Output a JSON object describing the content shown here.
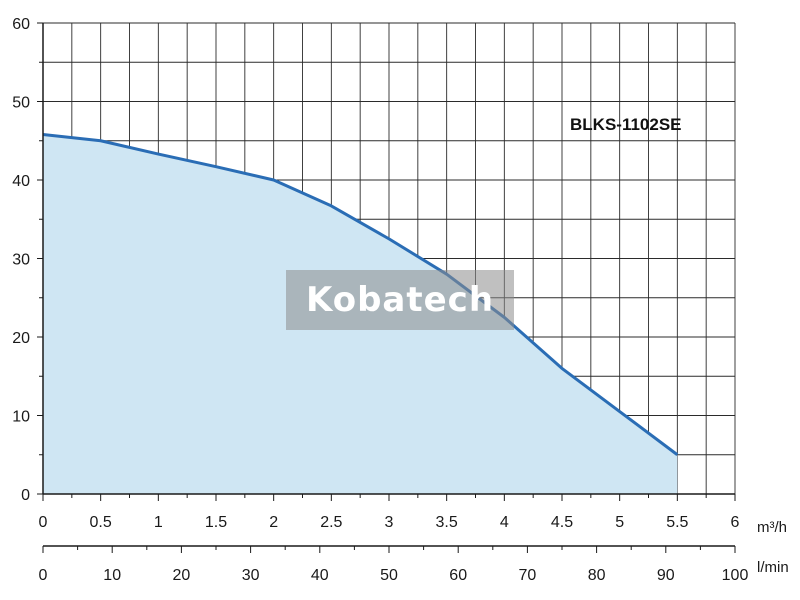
{
  "chart_data": {
    "type": "area",
    "series_label": "BLKS-1102SE",
    "x_unit_top": "m³/h",
    "x_unit_bottom": "l/min",
    "x_ticks_top": [
      "0",
      "0.5",
      "1",
      "1.5",
      "2",
      "2.5",
      "3",
      "3.5",
      "4",
      "4.5",
      "5",
      "5.5",
      "6"
    ],
    "x_ticks_bottom": [
      "0",
      "10",
      "20",
      "30",
      "40",
      "50",
      "60",
      "70",
      "80",
      "90",
      "100"
    ],
    "y_ticks": [
      "0",
      "10",
      "20",
      "30",
      "40",
      "50",
      "60"
    ],
    "xlim": [
      0,
      6
    ],
    "ylim": [
      0,
      60
    ],
    "grid": true,
    "x": [
      0,
      0.5,
      1.0,
      1.5,
      2.0,
      2.5,
      3.0,
      3.5,
      4.0,
      4.5,
      5.0,
      5.5
    ],
    "y": [
      45.8,
      45.0,
      43.3,
      41.7,
      40.0,
      36.7,
      32.5,
      28.0,
      22.5,
      16.0,
      10.5,
      5.0
    ],
    "colors": {
      "line": "#2a6db5",
      "fill": "#cfe6f3",
      "grid": "#2b2b2b",
      "axis": "#1a1a1a"
    },
    "watermark": "Kobatech"
  }
}
